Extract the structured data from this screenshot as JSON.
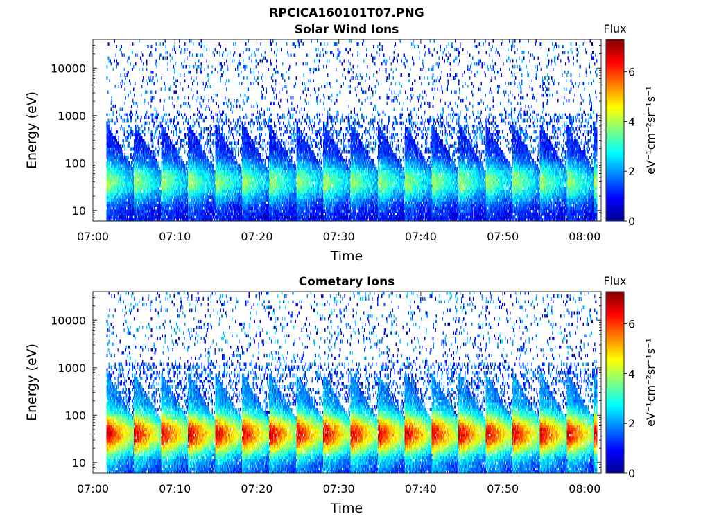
{
  "figure_title": "RPCICA160101T07.PNG",
  "chart_data": [
    {
      "type": "heatmap",
      "title": "Solar Wind Ions",
      "xlabel": "Time",
      "ylabel": "Energy (eV)",
      "x_ticks": [
        "07:00",
        "07:10",
        "07:20",
        "07:30",
        "07:40",
        "07:50",
        "08:00"
      ],
      "x_range": [
        "07:00",
        "08:02"
      ],
      "y_scale": "log",
      "y_ticks": [
        "10",
        "100",
        "1000",
        "10000"
      ],
      "y_range": [
        6,
        40000
      ],
      "colorbar": {
        "title": "Flux",
        "label": "eV⁻¹cm⁻²sr⁻¹s⁻¹",
        "ticks": [
          "0",
          "2",
          "4",
          "6"
        ],
        "range": [
          0,
          7.3
        ],
        "colormap": "jet"
      },
      "pattern": {
        "scan_period_min": 3.3,
        "first_scan_start": "07:01:40",
        "last_data": "08:01:30",
        "scans": 19,
        "peak_energy_eV": 40,
        "peak_flux": 4.0,
        "cutoff_energy_eV": 700,
        "high_energy_background_flux": 1.6
      }
    },
    {
      "type": "heatmap",
      "title": "Cometary Ions",
      "xlabel": "Time",
      "ylabel": "Energy (eV)",
      "x_ticks": [
        "07:00",
        "07:10",
        "07:20",
        "07:30",
        "07:40",
        "07:50",
        "08:00"
      ],
      "x_range": [
        "07:00",
        "08:02"
      ],
      "y_scale": "log",
      "y_ticks": [
        "10",
        "100",
        "1000",
        "10000"
      ],
      "y_range": [
        6,
        40000
      ],
      "colorbar": {
        "title": "Flux",
        "label": "eV⁻¹cm⁻²sr⁻¹s⁻¹",
        "ticks": [
          "0",
          "2",
          "4",
          "6"
        ],
        "range": [
          0,
          7.3
        ],
        "colormap": "jet"
      },
      "pattern": {
        "scan_period_min": 3.3,
        "first_scan_start": "07:01:40",
        "last_data": "08:01:30",
        "scans": 19,
        "peak_energy_eV": 40,
        "peak_flux": 6.8,
        "cutoff_energy_eV": 800,
        "high_energy_background_flux": 1.8
      }
    }
  ]
}
